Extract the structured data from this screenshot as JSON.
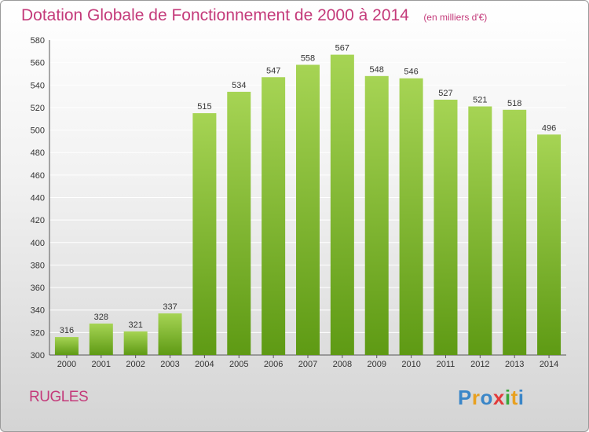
{
  "title": "Dotation Globale de Fonctionnement de 2000 à 2014",
  "unit": "(en milliers d'€)",
  "commune": "RUGLES",
  "logo": {
    "letters": [
      "P",
      "r",
      "o",
      "x",
      "i",
      "t",
      "i"
    ],
    "colors": [
      "#3a86c8",
      "#e8a020",
      "#3a86c8",
      "#e23a3a",
      "#3aa83a",
      "#e8a020",
      "#3a86c8"
    ]
  },
  "colors": {
    "bar_light": "#a6d454",
    "bar_dark": "#5e9a14",
    "grid": "#ffffff",
    "title": "#c43a7a"
  },
  "chart_data": {
    "type": "bar",
    "title": "Dotation Globale de Fonctionnement de 2000 à 2014",
    "subtitle": "(en milliers d'€)",
    "categories": [
      "2000",
      "2001",
      "2002",
      "2003",
      "2004",
      "2005",
      "2006",
      "2007",
      "2008",
      "2009",
      "2010",
      "2011",
      "2012",
      "2013",
      "2014"
    ],
    "values": [
      316,
      328,
      321,
      337,
      515,
      534,
      547,
      558,
      567,
      548,
      546,
      527,
      521,
      518,
      496
    ],
    "ylim": [
      300,
      580
    ],
    "yticks": [
      300,
      320,
      340,
      360,
      380,
      400,
      420,
      440,
      460,
      480,
      500,
      520,
      540,
      560,
      580
    ],
    "grid": true,
    "xlabel": "",
    "ylabel": ""
  }
}
